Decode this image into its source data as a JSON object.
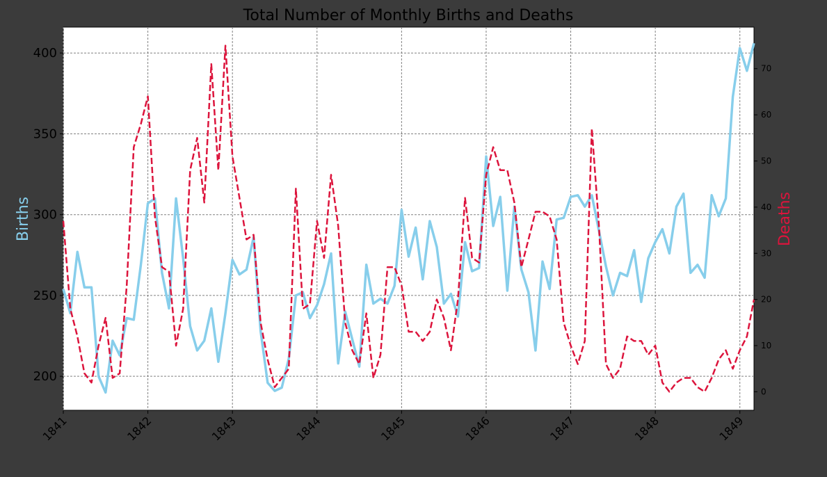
{
  "chart_data": {
    "type": "line",
    "title": "Total Number of Monthly Births and Deaths",
    "xlabel": "",
    "x_start": "1841-01",
    "x_end": "1849-03",
    "xticks": [
      "1841",
      "1842",
      "1843",
      "1844",
      "1845",
      "1846",
      "1847",
      "1848",
      "1849"
    ],
    "grid": true,
    "axes": {
      "left": {
        "label": "Births",
        "color": "#87ceeb",
        "ylim": [
          179,
          416
        ],
        "ticks": [
          200,
          250,
          300,
          350,
          400
        ]
      },
      "right": {
        "label": "Deaths",
        "color": "#dc143c",
        "ylim": [
          -4,
          79
        ],
        "ticks": [
          0,
          10,
          20,
          30,
          40,
          50,
          60,
          70
        ]
      }
    },
    "series": [
      {
        "name": "Births",
        "axis": "left",
        "color": "#87ceeb",
        "style": "solid",
        "values": [
          254,
          239,
          277,
          255,
          255,
          200,
          190,
          222,
          213,
          236,
          235,
          269,
          307,
          310,
          264,
          242,
          310,
          273,
          231,
          216,
          222,
          242,
          209,
          239,
          272,
          263,
          266,
          286,
          228,
          196,
          191,
          193,
          211,
          250,
          252,
          236,
          244,
          257,
          276,
          208,
          240,
          223,
          206,
          269,
          245,
          248,
          245,
          256,
          303,
          274,
          292,
          260,
          296,
          280,
          245,
          251,
          237,
          283,
          265,
          267,
          336,
          293,
          311,
          253,
          305,
          266,
          252,
          216,
          271,
          254,
          297,
          298,
          311,
          312,
          305,
          312,
          290,
          268,
          250,
          264,
          262,
          278,
          246,
          273,
          283,
          291,
          276,
          305,
          313,
          264,
          269,
          261,
          312,
          299,
          310,
          373,
          403,
          389,
          406
        ]
      },
      {
        "name": "Deaths",
        "axis": "right",
        "color": "#dc143c",
        "style": "dashed",
        "values": [
          37,
          18,
          12,
          4,
          2,
          10,
          16,
          3,
          4,
          23,
          53,
          58,
          64,
          38,
          27,
          26,
          10,
          18,
          48,
          55,
          41,
          71,
          48,
          75,
          51,
          42,
          33,
          34,
          15,
          7,
          1,
          3,
          5,
          44,
          18,
          19,
          37,
          29,
          47,
          36,
          15,
          9,
          6,
          17,
          3,
          8,
          27,
          27,
          23,
          13,
          13,
          11,
          13,
          20,
          16,
          9,
          20,
          42,
          29,
          28,
          47,
          53,
          48,
          48,
          41,
          27,
          33,
          39,
          39,
          38,
          33,
          15,
          10,
          6,
          11,
          57,
          36,
          6,
          3,
          5,
          12,
          11,
          11,
          8,
          10,
          2,
          0,
          2,
          3,
          3,
          1,
          0,
          3,
          7,
          9,
          5,
          9,
          12,
          20
        ]
      }
    ]
  }
}
